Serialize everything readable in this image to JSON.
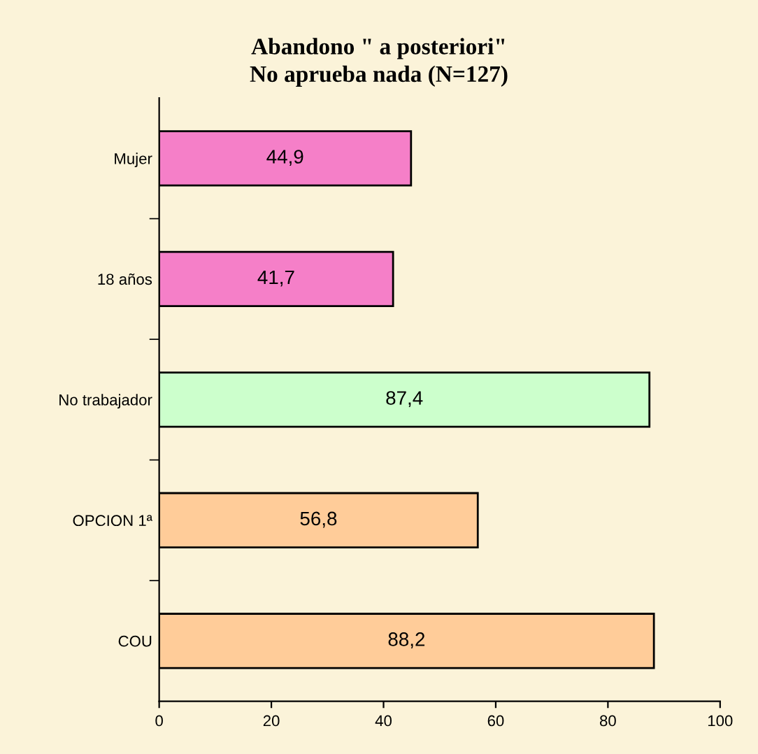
{
  "chart_data": {
    "type": "bar",
    "orientation": "horizontal",
    "title": "Abandono \" a posteriori\"\nNo aprueba nada (N=127)",
    "categories": [
      "Mujer",
      "18 años",
      "No trabajador",
      "OPCION 1ª",
      "COU"
    ],
    "values": [
      44.9,
      41.7,
      87.4,
      56.8,
      88.2
    ],
    "value_labels": [
      "44,9",
      "41,7",
      "87,4",
      "56,8",
      "88,2"
    ],
    "colors": [
      "#f57fc8",
      "#f57fc8",
      "#ccffcc",
      "#ffcc99",
      "#ffcc99"
    ],
    "xlim": [
      0,
      100
    ],
    "xticks": [
      0,
      20,
      40,
      60,
      80,
      100
    ],
    "grid": false
  }
}
